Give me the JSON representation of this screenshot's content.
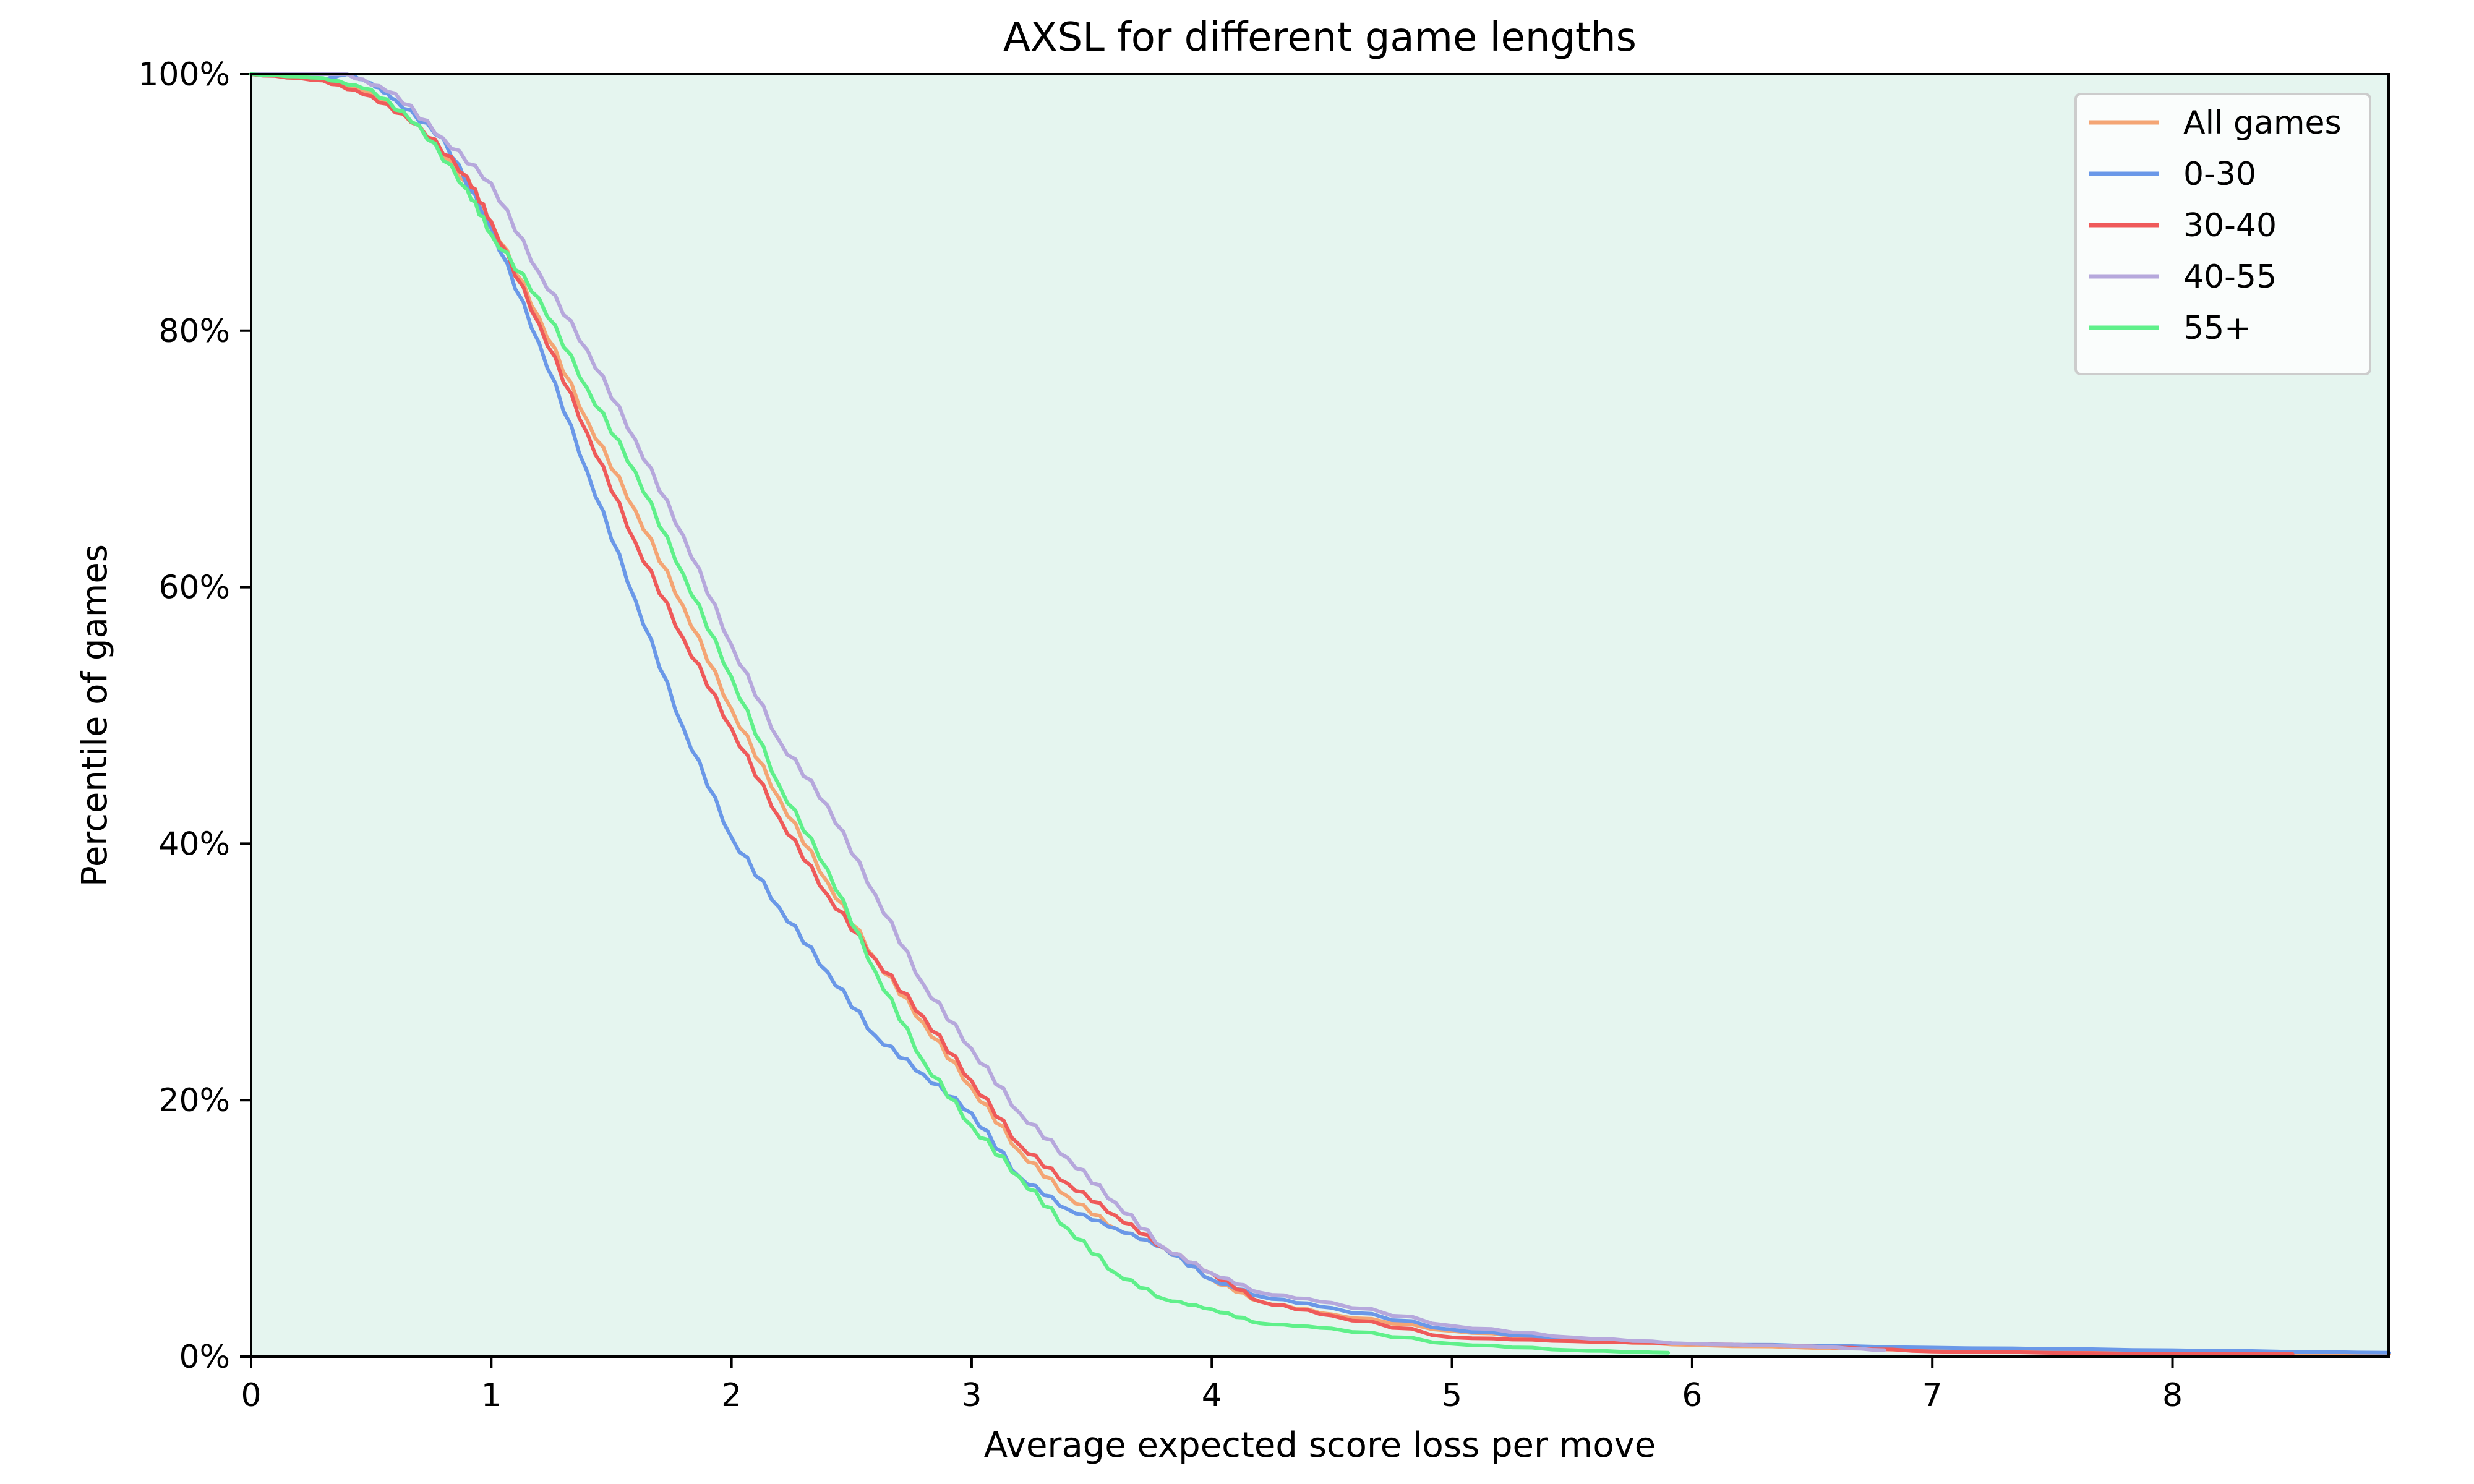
{
  "chart_data": {
    "type": "line",
    "title": "AXSL for different game lengths",
    "xlabel": "Average expected score loss per move",
    "ylabel": "Percentile of games",
    "xlim": [
      0,
      8.9
    ],
    "ylim": [
      0,
      100
    ],
    "xticks": [
      0,
      1,
      2,
      3,
      4,
      5,
      6,
      7,
      8
    ],
    "xtick_labels": [
      "0",
      "1",
      "2",
      "3",
      "4",
      "5",
      "6",
      "7",
      "8"
    ],
    "yticks": [
      0,
      20,
      40,
      60,
      80,
      100
    ],
    "ytick_labels": [
      "0%",
      "20%",
      "40%",
      "60%",
      "80%",
      "100%"
    ],
    "grid": false,
    "background_color": "#e5f5ef",
    "legend_position": "top-right",
    "series": [
      {
        "name": "All games",
        "color": "#f4a574",
        "points": [
          [
            0,
            100
          ],
          [
            0.3,
            99.6
          ],
          [
            0.5,
            98.5
          ],
          [
            0.7,
            96
          ],
          [
            0.9,
            91.5
          ],
          [
            1.0,
            88.5
          ],
          [
            1.2,
            81
          ],
          [
            1.4,
            73
          ],
          [
            1.6,
            66
          ],
          [
            1.8,
            58.5
          ],
          [
            2.0,
            50.5
          ],
          [
            2.2,
            43.5
          ],
          [
            2.4,
            37
          ],
          [
            2.6,
            31
          ],
          [
            2.8,
            26
          ],
          [
            3.0,
            21
          ],
          [
            3.2,
            16
          ],
          [
            3.4,
            12.5
          ],
          [
            3.6,
            10
          ],
          [
            3.8,
            8.5
          ],
          [
            4.0,
            6
          ],
          [
            4.2,
            4.3
          ],
          [
            4.5,
            3.3
          ],
          [
            5.0,
            2
          ],
          [
            5.5,
            1.3
          ],
          [
            6.0,
            0.9
          ],
          [
            7.0,
            0.5
          ],
          [
            8.0,
            0.3
          ],
          [
            8.9,
            0.2
          ]
        ]
      },
      {
        "name": "0-30",
        "color": "#6a98e8",
        "points": [
          [
            0,
            100
          ],
          [
            0.3,
            99.6
          ],
          [
            0.4,
            100
          ],
          [
            0.5,
            99.3
          ],
          [
            0.6,
            98
          ],
          [
            0.8,
            95
          ],
          [
            1.0,
            88
          ],
          [
            1.2,
            79
          ],
          [
            1.4,
            69
          ],
          [
            1.6,
            59
          ],
          [
            1.8,
            49
          ],
          [
            2.0,
            40.5
          ],
          [
            2.2,
            35
          ],
          [
            2.4,
            30
          ],
          [
            2.6,
            25
          ],
          [
            2.8,
            22
          ],
          [
            3.0,
            19
          ],
          [
            3.2,
            14
          ],
          [
            3.4,
            11.5
          ],
          [
            3.6,
            10
          ],
          [
            3.8,
            8.5
          ],
          [
            4.0,
            6
          ],
          [
            4.2,
            4.7
          ],
          [
            4.5,
            3.8
          ],
          [
            5.0,
            2.1
          ],
          [
            5.5,
            1.3
          ],
          [
            6.0,
            1.0
          ],
          [
            7.0,
            0.7
          ],
          [
            8.0,
            0.5
          ],
          [
            8.9,
            0.3
          ]
        ]
      },
      {
        "name": "30-40",
        "color": "#ef5a5a",
        "points": [
          [
            0,
            100
          ],
          [
            0.3,
            99.5
          ],
          [
            0.5,
            98.3
          ],
          [
            0.7,
            96
          ],
          [
            0.9,
            92
          ],
          [
            1.0,
            88.5
          ],
          [
            1.2,
            80.5
          ],
          [
            1.4,
            72
          ],
          [
            1.6,
            63.5
          ],
          [
            1.8,
            56
          ],
          [
            2.0,
            49
          ],
          [
            2.2,
            42
          ],
          [
            2.4,
            36
          ],
          [
            2.6,
            31
          ],
          [
            2.8,
            26.5
          ],
          [
            3.0,
            21.5
          ],
          [
            3.2,
            16.5
          ],
          [
            3.4,
            13.5
          ],
          [
            3.6,
            11
          ],
          [
            3.8,
            8.5
          ],
          [
            4.0,
            6.5
          ],
          [
            4.2,
            4.3
          ],
          [
            4.5,
            3.2
          ],
          [
            5.0,
            1.5
          ],
          [
            5.5,
            1.2
          ],
          [
            6.0,
            1.0
          ],
          [
            6.5,
            0.8
          ],
          [
            7.0,
            0.4
          ],
          [
            8.0,
            0.2
          ],
          [
            8.5,
            0.2
          ]
        ]
      },
      {
        "name": "40-55",
        "color": "#b6a8dc",
        "points": [
          [
            0,
            100
          ],
          [
            0.4,
            100
          ],
          [
            0.6,
            98.5
          ],
          [
            0.8,
            95
          ],
          [
            1.0,
            91.5
          ],
          [
            1.2,
            84.5
          ],
          [
            1.4,
            78.5
          ],
          [
            1.6,
            71.5
          ],
          [
            1.8,
            64
          ],
          [
            2.0,
            55.5
          ],
          [
            2.2,
            48
          ],
          [
            2.4,
            43
          ],
          [
            2.6,
            36
          ],
          [
            2.8,
            29
          ],
          [
            3.0,
            24
          ],
          [
            3.2,
            19
          ],
          [
            3.4,
            15.5
          ],
          [
            3.6,
            12
          ],
          [
            3.8,
            8.5
          ],
          [
            4.0,
            6.5
          ],
          [
            4.2,
            5
          ],
          [
            4.5,
            4.2
          ],
          [
            5.0,
            2.4
          ],
          [
            5.5,
            1.5
          ],
          [
            6.0,
            1.0
          ],
          [
            6.5,
            0.8
          ],
          [
            6.8,
            0.5
          ]
        ]
      },
      {
        "name": "55+",
        "color": "#5ff08a",
        "points": [
          [
            0,
            100
          ],
          [
            0.3,
            99.7
          ],
          [
            0.5,
            98.8
          ],
          [
            0.7,
            96
          ],
          [
            0.9,
            91
          ],
          [
            1.0,
            87.5
          ],
          [
            1.2,
            82.5
          ],
          [
            1.4,
            75.5
          ],
          [
            1.6,
            69
          ],
          [
            1.8,
            61
          ],
          [
            2.0,
            53
          ],
          [
            2.2,
            44.5
          ],
          [
            2.4,
            38
          ],
          [
            2.6,
            30
          ],
          [
            2.8,
            23
          ],
          [
            3.0,
            18
          ],
          [
            3.2,
            14
          ],
          [
            3.4,
            10
          ],
          [
            3.6,
            6.5
          ],
          [
            3.8,
            4.5
          ],
          [
            4.0,
            3.7
          ],
          [
            4.2,
            2.6
          ],
          [
            4.5,
            2.2
          ],
          [
            5.0,
            1.0
          ],
          [
            5.5,
            0.5
          ],
          [
            5.9,
            0.3
          ]
        ]
      }
    ]
  }
}
